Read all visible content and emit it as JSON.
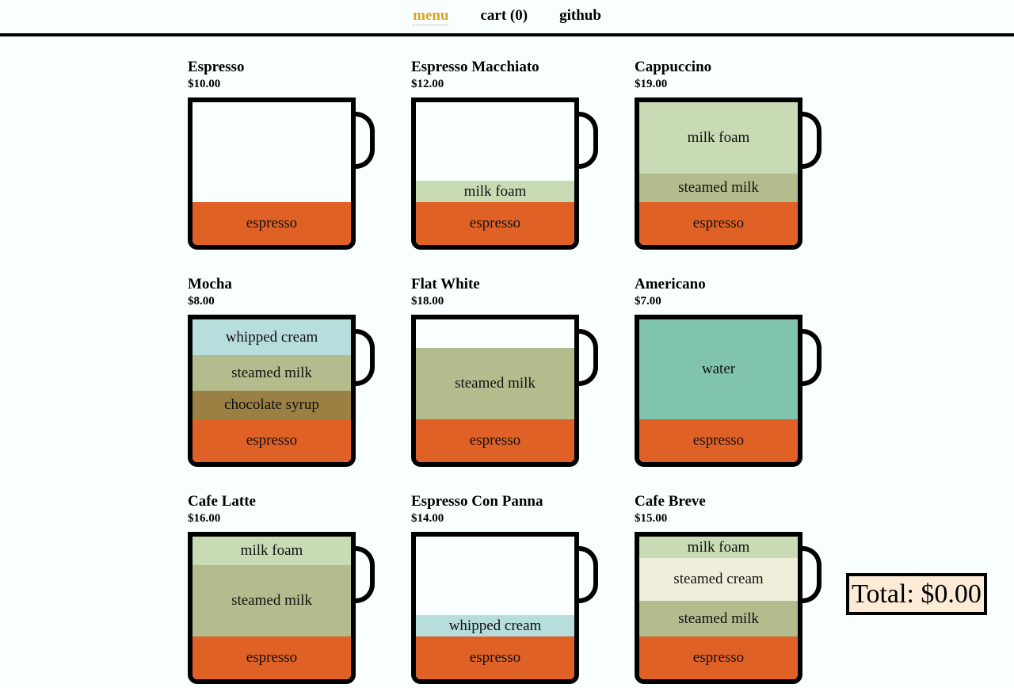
{
  "nav": {
    "items": [
      {
        "label": "menu",
        "active": true
      },
      {
        "label": "cart (0)"
      },
      {
        "label": "github"
      }
    ]
  },
  "colors": {
    "active_nav": "#daa520",
    "espresso": "#e06126",
    "milk foam": "#c8dbb4",
    "steamed milk": "#b2bc8c",
    "whipped cream": "#b7dddc",
    "chocolate syrup": "#9b8043",
    "water": "#80c4b0",
    "steamed cream": "#f0eedb",
    "total_bg": "#fcebd6"
  },
  "menu": [
    {
      "name": "Espresso",
      "price": "$10.00",
      "layers": [
        {
          "label": "espresso",
          "fraction": 0.3
        }
      ]
    },
    {
      "name": "Espresso Macchiato",
      "price": "$12.00",
      "layers": [
        {
          "label": "espresso",
          "fraction": 0.3
        },
        {
          "label": "milk foam",
          "fraction": 0.15
        }
      ]
    },
    {
      "name": "Cappuccino",
      "price": "$19.00",
      "layers": [
        {
          "label": "espresso",
          "fraction": 0.3
        },
        {
          "label": "steamed milk",
          "fraction": 0.2
        },
        {
          "label": "milk foam",
          "fraction": 0.5
        }
      ]
    },
    {
      "name": "Mocha",
      "price": "$8.00",
      "layers": [
        {
          "label": "espresso",
          "fraction": 0.3
        },
        {
          "label": "chocolate syrup",
          "fraction": 0.2
        },
        {
          "label": "steamed milk",
          "fraction": 0.25
        },
        {
          "label": "whipped cream",
          "fraction": 0.25
        }
      ]
    },
    {
      "name": "Flat White",
      "price": "$18.00",
      "layers": [
        {
          "label": "espresso",
          "fraction": 0.3
        },
        {
          "label": "steamed milk",
          "fraction": 0.5
        }
      ]
    },
    {
      "name": "Americano",
      "price": "$7.00",
      "layers": [
        {
          "label": "espresso",
          "fraction": 0.3
        },
        {
          "label": "water",
          "fraction": 0.7
        }
      ]
    },
    {
      "name": "Cafe Latte",
      "price": "$16.00",
      "layers": [
        {
          "label": "espresso",
          "fraction": 0.3
        },
        {
          "label": "steamed milk",
          "fraction": 0.5
        },
        {
          "label": "milk foam",
          "fraction": 0.2
        }
      ]
    },
    {
      "name": "Espresso Con Panna",
      "price": "$14.00",
      "layers": [
        {
          "label": "espresso",
          "fraction": 0.3
        },
        {
          "label": "whipped cream",
          "fraction": 0.15
        }
      ]
    },
    {
      "name": "Cafe Breve",
      "price": "$15.00",
      "layers": [
        {
          "label": "espresso",
          "fraction": 0.3
        },
        {
          "label": "steamed milk",
          "fraction": 0.25
        },
        {
          "label": "steamed cream",
          "fraction": 0.3
        },
        {
          "label": "milk foam",
          "fraction": 0.15
        }
      ]
    }
  ],
  "total": {
    "label": "Total: $0.00"
  }
}
